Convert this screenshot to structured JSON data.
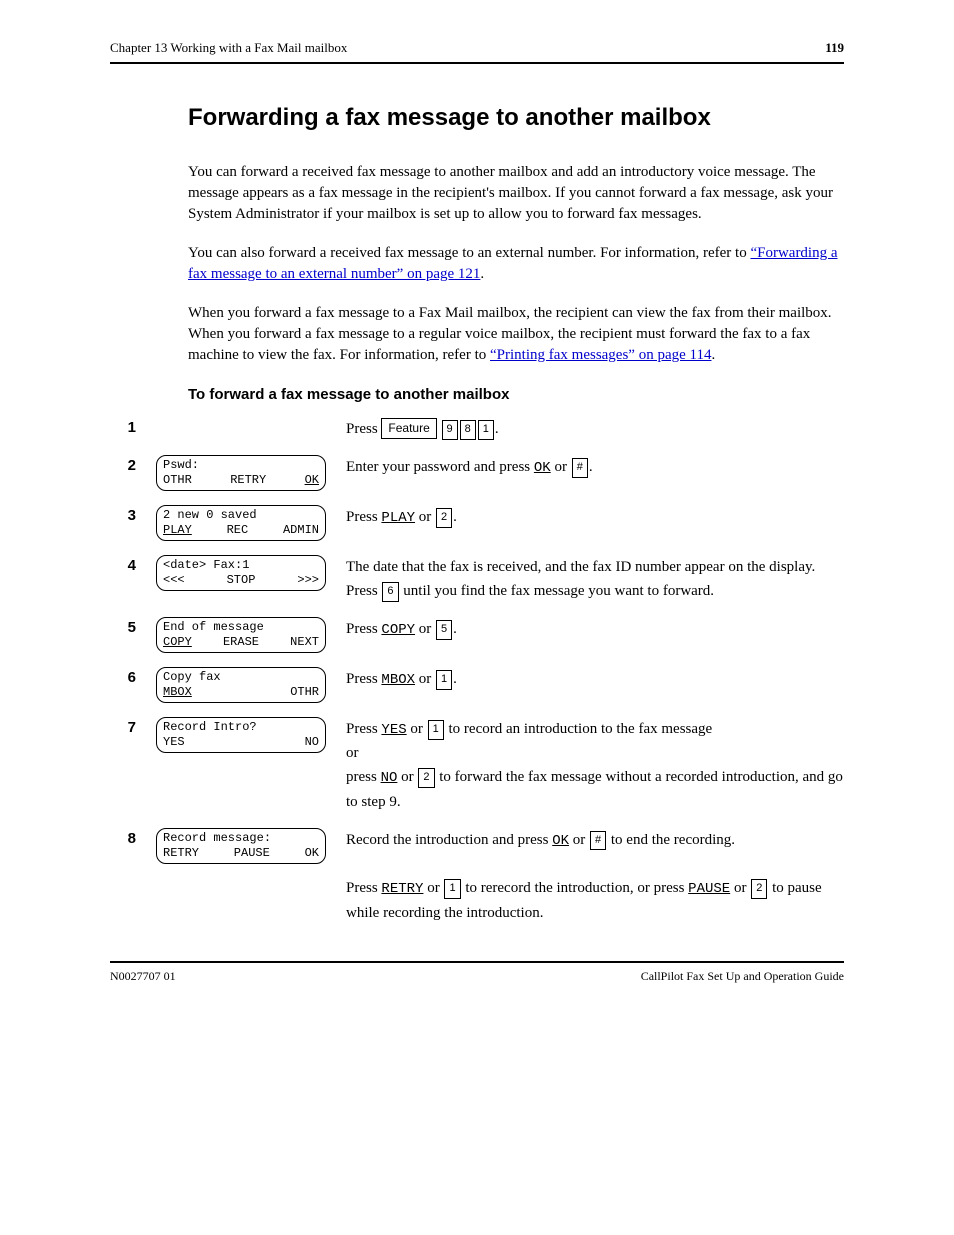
{
  "header": {
    "chapter": "Chapter 13  Working with a Fax Mail mailbox",
    "page": "119"
  },
  "title": "Forwarding a fax message to another mailbox",
  "intro": {
    "p1_a": "You can forward a received fax message to another mailbox and add an introductory voice message. The message appears as a fax message in the recipient's mailbox. If you cannot forward a fax message, ask your System Administrator if your mailbox is set up to allow you to forward fax messages.",
    "p2_a": "You can also forward a received fax message to an external number. For information, refer to ",
    "p2_link": "“Forwarding a fax message to an external number” on page 121",
    "p2_b": ".",
    "p3_a": "When you forward a fax message to a Fax Mail mailbox, the recipient can view the fax from their mailbox. When you forward a fax message to a regular voice mailbox, the recipient must forward the fax to a fax machine to view the fax. For information, refer to ",
    "p3_link": "“Printing fax messages” on page 114",
    "p3_b": "."
  },
  "subhead": "To forward a fax message to another mailbox",
  "steps": {
    "s1": {
      "num": "1",
      "text_a": "Press ",
      "feature": "Feature",
      "digits": [
        "9",
        "8",
        "1"
      ],
      "text_b": "."
    },
    "s2": {
      "num": "2",
      "lcd_top": "Pswd:",
      "lcd_bl": "OTHR",
      "lcd_bm": "RETRY",
      "lcd_br": "OK",
      "br_underlined": true,
      "text_a": "Enter your password and press ",
      "soft": "OK",
      "text_b": " or ",
      "key": "#",
      "text_c": "."
    },
    "s3": {
      "num": "3",
      "lcd_top": "2 new  0 saved",
      "lcd_bl": "PLAY",
      "lcd_bm": "REC",
      "lcd_br": "ADMIN",
      "bl_underlined": true,
      "text_a": "Press ",
      "soft": "PLAY",
      "text_b": " or ",
      "key": "2",
      "text_c": "."
    },
    "s4": {
      "num": "4",
      "lcd_top": "<date> Fax:1",
      "lcd_bl": "<<<",
      "lcd_bm": "STOP",
      "lcd_br": ">>>",
      "text_a": "The date that the fax is received, and the fax ID number appear on the display. Press ",
      "key": "6",
      "text_b": " until you find the fax message you want to forward."
    },
    "s5": {
      "num": "5",
      "lcd_top": "End of message",
      "lcd_bl": "COPY",
      "lcd_bm": "ERASE",
      "lcd_br": "NEXT",
      "bl_underlined": true,
      "text_a": "Press ",
      "soft": "COPY",
      "text_b": " or ",
      "key": "5",
      "text_c": "."
    },
    "s6": {
      "num": "6",
      "lcd_top": "Copy fax",
      "lcd_bl": "MBOX",
      "lcd_bm": "",
      "lcd_br": "OTHR",
      "bl_underlined": true,
      "text_a": "Press ",
      "soft": "MBOX",
      "text_b": " or ",
      "key": "1",
      "text_c": "."
    },
    "s7": {
      "num": "7",
      "lcd_top": "Record Intro?",
      "lcd_bl": "YES",
      "lcd_bm": "",
      "lcd_br": "NO",
      "text_a": "Press ",
      "soft": "YES",
      "text_b": " or ",
      "key": "1",
      "text_c": " to record an introduction to the fax message",
      "line2_a": "or",
      "line3_a": "press ",
      "soft2": "NO",
      "line3_b": " or ",
      "key2": "2",
      "line3_c": " to forward the fax message without a recorded introduction, and go to step 9."
    },
    "s8": {
      "num": "8",
      "lcd_top": "Record message:",
      "lcd_bl": "RETRY",
      "lcd_bm": "PAUSE",
      "lcd_br": "OK",
      "text_a": "Record the introduction and press ",
      "soft": "OK",
      "text_b": " or ",
      "key": "#",
      "text_c": " to end the recording.",
      "line2_a": "Press ",
      "soft2": "RETRY",
      "line2_b": " or ",
      "key2": "1",
      "line2_c": " to rerecord the introduction, or press ",
      "soft3": "PAUSE",
      "line2_d": " or ",
      "key3": "2",
      "line2_e": " to pause while recording the introduction."
    }
  },
  "footer": {
    "left": "N0027707 01",
    "right": "CallPilot Fax Set Up and Operation Guide"
  },
  "colors": {
    "text": "#000000",
    "link": "#0000cc",
    "bg": "#ffffff",
    "rule": "#000000"
  }
}
